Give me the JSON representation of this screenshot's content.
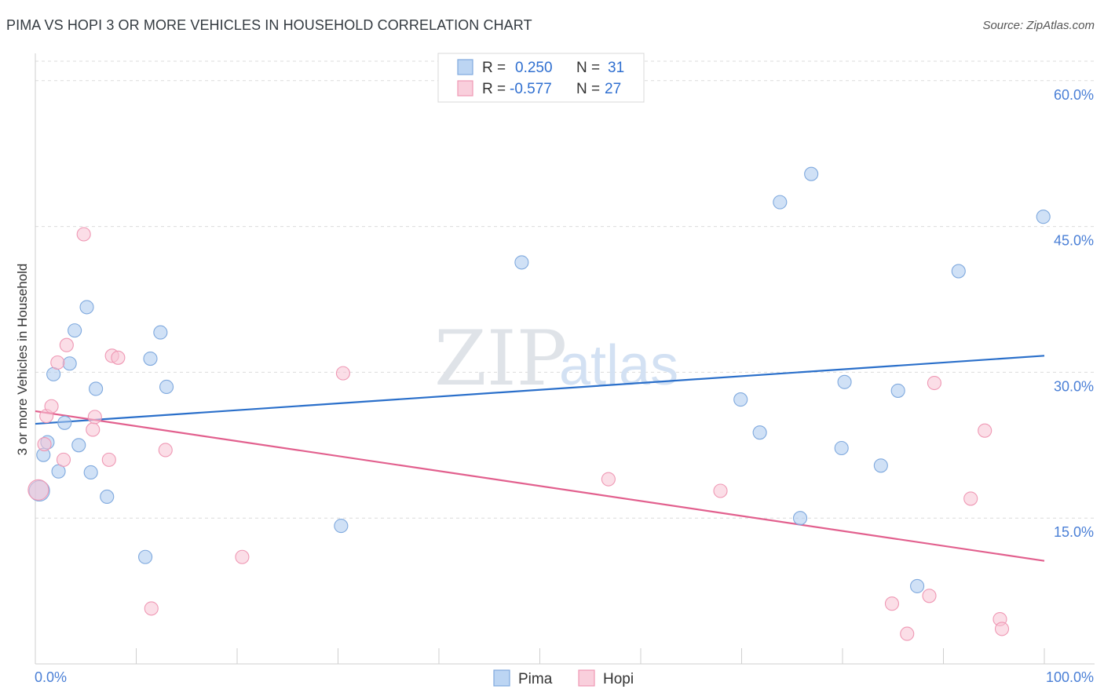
{
  "header": {
    "title": "PIMA VS HOPI 3 OR MORE VEHICLES IN HOUSEHOLD CORRELATION CHART",
    "source": "Source: ZipAtlas.com"
  },
  "legend": {
    "r_label": "R =",
    "n_label": "N =",
    "rows": [
      {
        "r": "0.250",
        "n": "31"
      },
      {
        "r": "-0.577",
        "n": "27"
      }
    ]
  },
  "watermark": {
    "zip": "ZIP",
    "atlas": "atlas"
  },
  "chart_data": {
    "type": "scatter",
    "title": "PIMA VS HOPI 3 OR MORE VEHICLES IN HOUSEHOLD CORRELATION CHART",
    "xlabel": "",
    "ylabel": "3 or more Vehicles in Household",
    "xlim": [
      0,
      100
    ],
    "ylim": [
      0,
      62
    ],
    "x_tick_labels": [
      "0.0%",
      "100.0%"
    ],
    "y_ticks": [
      15,
      30,
      45,
      60
    ],
    "y_tick_labels": [
      "15.0%",
      "30.0%",
      "45.0%",
      "60.0%"
    ],
    "grid": true,
    "series": [
      {
        "name": "Pima",
        "color": "#a9c8ee",
        "stroke": "#7fa9de",
        "line_color": "#2a6fca",
        "trend": {
          "x": [
            0,
            100
          ],
          "y": [
            24.7,
            31.7
          ]
        },
        "points": [
          {
            "x": 0.4,
            "y": 17.8
          },
          {
            "x": 0.8,
            "y": 21.5
          },
          {
            "x": 1.2,
            "y": 22.8
          },
          {
            "x": 1.8,
            "y": 29.8
          },
          {
            "x": 2.3,
            "y": 19.8
          },
          {
            "x": 2.9,
            "y": 24.8
          },
          {
            "x": 3.4,
            "y": 30.9
          },
          {
            "x": 3.9,
            "y": 34.3
          },
          {
            "x": 4.3,
            "y": 22.5
          },
          {
            "x": 5.1,
            "y": 36.7
          },
          {
            "x": 5.5,
            "y": 19.7
          },
          {
            "x": 6.0,
            "y": 28.3
          },
          {
            "x": 7.1,
            "y": 17.2
          },
          {
            "x": 10.9,
            "y": 11.0
          },
          {
            "x": 11.4,
            "y": 31.4
          },
          {
            "x": 12.4,
            "y": 34.1
          },
          {
            "x": 13.0,
            "y": 28.5
          },
          {
            "x": 30.3,
            "y": 14.2
          },
          {
            "x": 48.2,
            "y": 41.3
          },
          {
            "x": 69.9,
            "y": 27.2
          },
          {
            "x": 71.8,
            "y": 23.8
          },
          {
            "x": 73.8,
            "y": 47.5
          },
          {
            "x": 75.8,
            "y": 15.0
          },
          {
            "x": 76.9,
            "y": 50.4
          },
          {
            "x": 79.9,
            "y": 22.2
          },
          {
            "x": 80.2,
            "y": 29.0
          },
          {
            "x": 83.8,
            "y": 20.4
          },
          {
            "x": 85.5,
            "y": 28.1
          },
          {
            "x": 87.4,
            "y": 8.0
          },
          {
            "x": 91.5,
            "y": 40.4
          },
          {
            "x": 99.9,
            "y": 46.0
          }
        ]
      },
      {
        "name": "Hopi",
        "color": "#f7c3d3",
        "stroke": "#ef98b4",
        "line_color": "#e2608e",
        "trend": {
          "x": [
            0,
            100
          ],
          "y": [
            26.0,
            10.6
          ]
        },
        "points": [
          {
            "x": 0.3,
            "y": 17.9
          },
          {
            "x": 0.9,
            "y": 22.6
          },
          {
            "x": 1.1,
            "y": 25.5
          },
          {
            "x": 1.6,
            "y": 26.5
          },
          {
            "x": 2.2,
            "y": 31.0
          },
          {
            "x": 2.8,
            "y": 21.0
          },
          {
            "x": 3.1,
            "y": 32.8
          },
          {
            "x": 4.8,
            "y": 44.2
          },
          {
            "x": 5.7,
            "y": 24.1
          },
          {
            "x": 5.9,
            "y": 25.4
          },
          {
            "x": 7.3,
            "y": 21.0
          },
          {
            "x": 7.6,
            "y": 31.7
          },
          {
            "x": 8.2,
            "y": 31.5
          },
          {
            "x": 11.5,
            "y": 5.7
          },
          {
            "x": 12.9,
            "y": 22.0
          },
          {
            "x": 20.5,
            "y": 11.0
          },
          {
            "x": 30.5,
            "y": 29.9
          },
          {
            "x": 56.8,
            "y": 19.0
          },
          {
            "x": 67.9,
            "y": 17.8
          },
          {
            "x": 84.9,
            "y": 6.2
          },
          {
            "x": 86.4,
            "y": 3.1
          },
          {
            "x": 88.6,
            "y": 7.0
          },
          {
            "x": 89.1,
            "y": 28.9
          },
          {
            "x": 92.7,
            "y": 17.0
          },
          {
            "x": 94.1,
            "y": 24.0
          },
          {
            "x": 95.6,
            "y": 4.6
          },
          {
            "x": 95.8,
            "y": 3.6
          }
        ]
      }
    ]
  }
}
